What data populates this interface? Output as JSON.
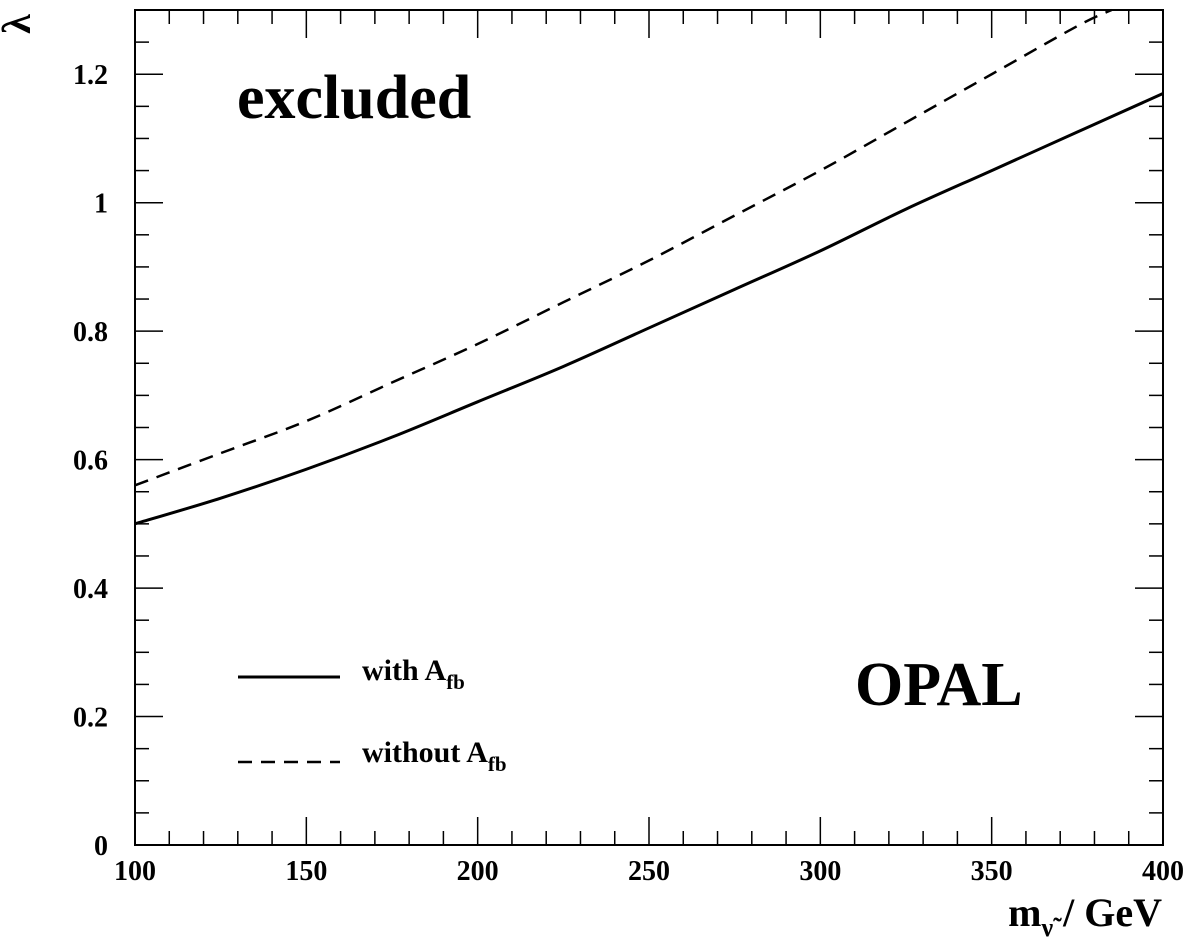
{
  "chart_data": {
    "type": "line",
    "xlabel": {
      "main": "m",
      "sub": "ν̃",
      "rest": " / GeV"
    },
    "ylabel": "λ",
    "xlim": [
      100,
      400
    ],
    "ylim": [
      0,
      1.3
    ],
    "xticks": [
      100,
      150,
      200,
      250,
      300,
      350,
      400
    ],
    "xtick_labels": [
      "100",
      "150",
      "200",
      "250",
      "300",
      "350",
      "400"
    ],
    "yticks": [
      0,
      0.2,
      0.4,
      0.6,
      0.8,
      1.0,
      1.2
    ],
    "ytick_labels": [
      "0",
      "0.2",
      "0.4",
      "0.6",
      "0.8",
      "1",
      "1.2"
    ],
    "grid": false,
    "legend_placement": "bottom-left",
    "annotations": {
      "region": "excluded",
      "experiment": "OPAL"
    },
    "series": [
      {
        "name": "with A_fb",
        "label_main": "with A",
        "label_sub": "fb",
        "style": "solid",
        "x": [
          100,
          125,
          150,
          175,
          200,
          225,
          250,
          275,
          300,
          325,
          350,
          375,
          400
        ],
        "y": [
          0.5,
          0.54,
          0.585,
          0.635,
          0.69,
          0.745,
          0.805,
          0.865,
          0.925,
          0.99,
          1.05,
          1.11,
          1.17
        ]
      },
      {
        "name": "without A_fb",
        "label_main": "without A",
        "label_sub": "fb",
        "style": "dashed",
        "x": [
          100,
          125,
          150,
          175,
          200,
          225,
          250,
          275,
          300,
          325,
          350,
          375,
          385
        ],
        "y": [
          0.56,
          0.61,
          0.66,
          0.72,
          0.78,
          0.845,
          0.91,
          0.98,
          1.05,
          1.125,
          1.2,
          1.275,
          1.3
        ]
      }
    ]
  }
}
